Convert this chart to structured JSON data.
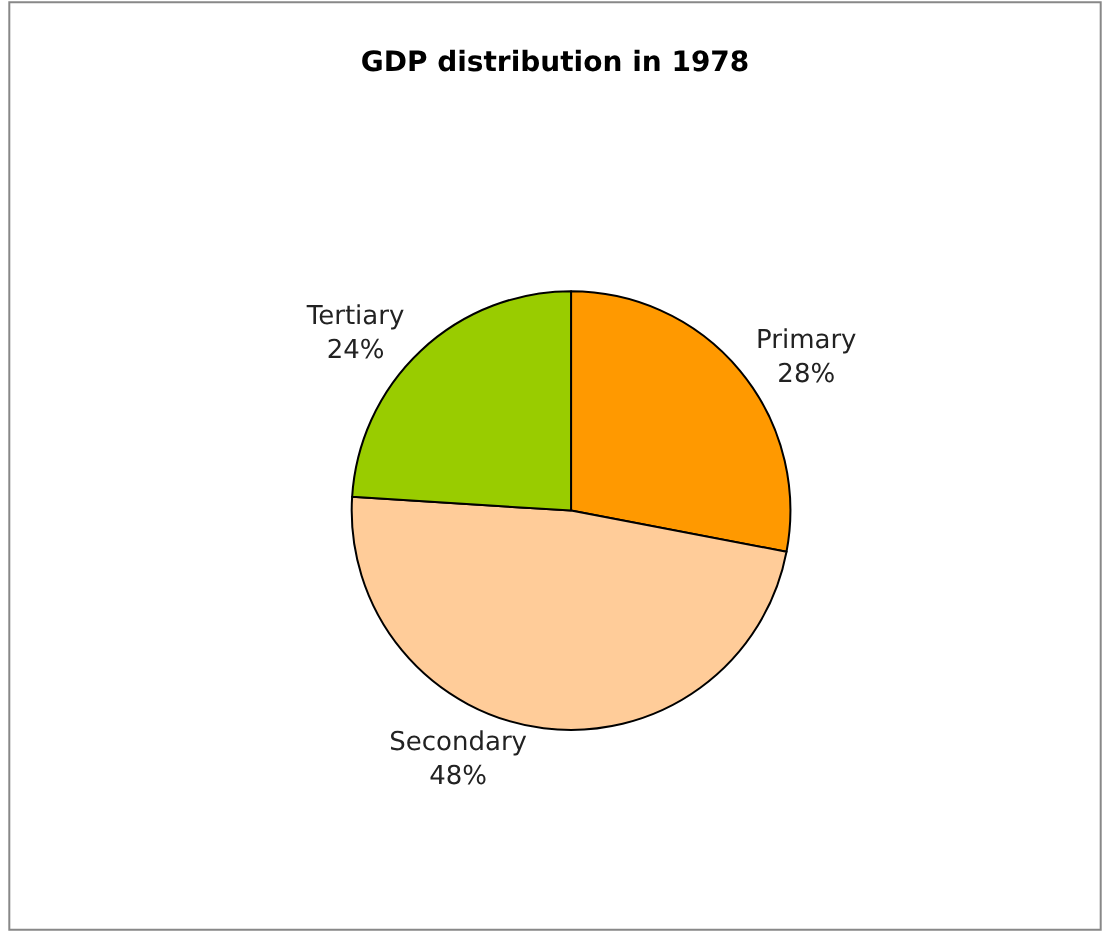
{
  "chart_data": {
    "type": "pie",
    "title": "GDP distribution in 1978",
    "categories": [
      "Primary",
      "Secondary",
      "Tertiary"
    ],
    "values": [
      28,
      48,
      24
    ],
    "value_labels": [
      "28%",
      "48%",
      "24%"
    ],
    "colors": [
      "#ff9900",
      "#ffcc99",
      "#99cc00"
    ],
    "legend": false
  }
}
